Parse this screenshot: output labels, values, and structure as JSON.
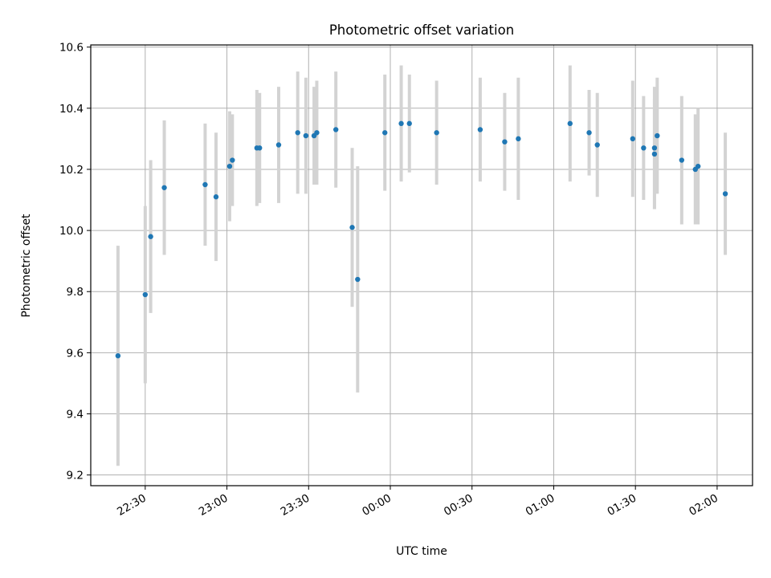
{
  "chart_data": {
    "type": "scatter",
    "title": "Photometric offset variation",
    "xlabel": "UTC time",
    "ylabel": "Photometric offset",
    "x_format": "HH:MM",
    "xlim": [
      "22:10",
      "02:13"
    ],
    "ylim": [
      9.165,
      10.607
    ],
    "xticks": [
      "22:30",
      "23:00",
      "23:30",
      "00:00",
      "00:30",
      "01:00",
      "01:30",
      "02:00"
    ],
    "yticks": [
      "9.2",
      "9.4",
      "9.6",
      "9.8",
      "10.0",
      "10.2",
      "10.4",
      "10.6"
    ],
    "grid": true,
    "legend": "none",
    "series": [
      {
        "marker_color": "#1f77b4",
        "errorbar_color": "#d3d3d3",
        "points": [
          {
            "x": "22:20",
            "y": 9.59,
            "yerr": 0.36
          },
          {
            "x": "22:30",
            "y": 9.79,
            "yerr": 0.29
          },
          {
            "x": "22:32",
            "y": 9.98,
            "yerr": 0.25
          },
          {
            "x": "22:37",
            "y": 10.14,
            "yerr": 0.22
          },
          {
            "x": "22:52",
            "y": 10.15,
            "yerr": 0.2
          },
          {
            "x": "22:56",
            "y": 10.11,
            "yerr": 0.21
          },
          {
            "x": "23:01",
            "y": 10.21,
            "yerr": 0.18
          },
          {
            "x": "23:02",
            "y": 10.23,
            "yerr": 0.15
          },
          {
            "x": "23:11",
            "y": 10.27,
            "yerr": 0.19
          },
          {
            "x": "23:12",
            "y": 10.27,
            "yerr": 0.18
          },
          {
            "x": "23:19",
            "y": 10.28,
            "yerr": 0.19
          },
          {
            "x": "23:26",
            "y": 10.32,
            "yerr": 0.2
          },
          {
            "x": "23:29",
            "y": 10.31,
            "yerr": 0.19
          },
          {
            "x": "23:32",
            "y": 10.31,
            "yerr": 0.16
          },
          {
            "x": "23:33",
            "y": 10.32,
            "yerr": 0.17
          },
          {
            "x": "23:40",
            "y": 10.33,
            "yerr": 0.19
          },
          {
            "x": "23:46",
            "y": 10.01,
            "yerr": 0.26
          },
          {
            "x": "23:48",
            "y": 9.84,
            "yerr": 0.37
          },
          {
            "x": "23:58",
            "y": 10.32,
            "yerr": 0.19
          },
          {
            "x": "00:04",
            "y": 10.35,
            "yerr": 0.19
          },
          {
            "x": "00:07",
            "y": 10.35,
            "yerr": 0.16
          },
          {
            "x": "00:17",
            "y": 10.32,
            "yerr": 0.17
          },
          {
            "x": "00:33",
            "y": 10.33,
            "yerr": 0.17
          },
          {
            "x": "00:42",
            "y": 10.29,
            "yerr": 0.16
          },
          {
            "x": "00:47",
            "y": 10.3,
            "yerr": 0.2
          },
          {
            "x": "01:06",
            "y": 10.35,
            "yerr": 0.19
          },
          {
            "x": "01:13",
            "y": 10.32,
            "yerr": 0.14
          },
          {
            "x": "01:16",
            "y": 10.28,
            "yerr": 0.17
          },
          {
            "x": "01:29",
            "y": 10.3,
            "yerr": 0.19
          },
          {
            "x": "01:33",
            "y": 10.27,
            "yerr": 0.17
          },
          {
            "x": "01:37",
            "y": 10.25,
            "yerr": 0.18
          },
          {
            "x": "01:37",
            "y": 10.27,
            "yerr": 0.2
          },
          {
            "x": "01:38",
            "y": 10.31,
            "yerr": 0.19
          },
          {
            "x": "01:47",
            "y": 10.23,
            "yerr": 0.21
          },
          {
            "x": "01:52",
            "y": 10.2,
            "yerr": 0.18
          },
          {
            "x": "01:53",
            "y": 10.21,
            "yerr": 0.19
          },
          {
            "x": "02:03",
            "y": 10.12,
            "yerr": 0.2
          }
        ]
      }
    ]
  }
}
